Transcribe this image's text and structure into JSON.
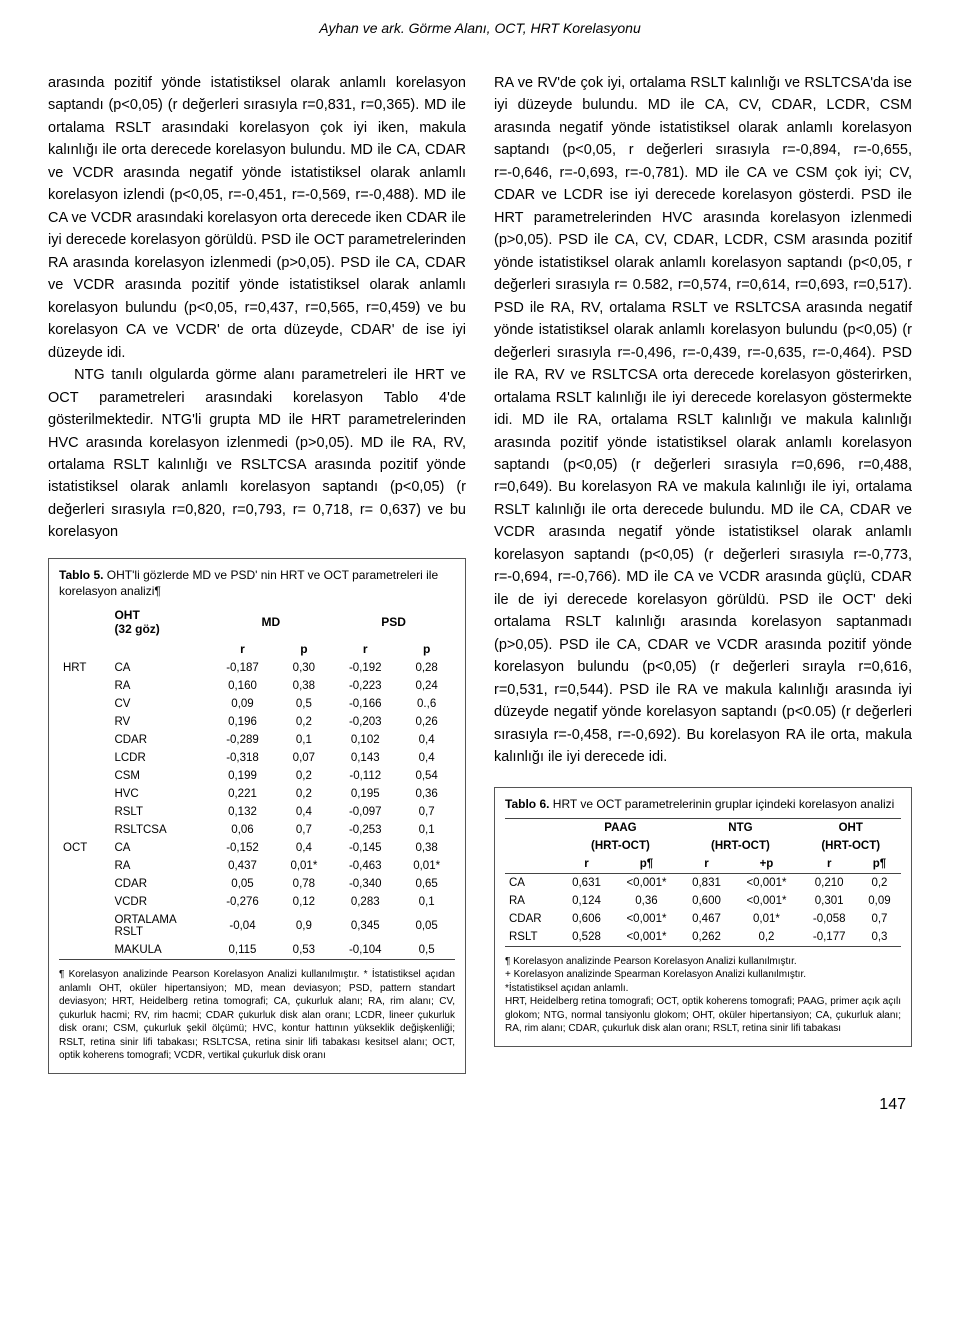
{
  "running_head": "Ayhan ve ark. Görme Alanı, OCT, HRT Korelasyonu",
  "left_col": {
    "p1": "arasında pozitif yönde istatistiksel olarak anlamlı korelasyon saptandı (p<0,05) (r değerleri sırasıyla r=0,831, r=0,365). MD ile ortalama RSLT arasındaki korelasyon çok iyi iken, makula kalınlığı ile orta derecede korelasyon bulundu. MD ile CA, CDAR ve VCDR arasında negatif yönde istatistiksel olarak anlamlı korelasyon izlendi (p<0,05, r=-0,451, r=-0,569, r=-0,488). MD ile CA ve VCDR arasındaki korelasyon orta derecede iken CDAR ile iyi derecede korelasyon görüldü. PSD ile OCT parametrelerinden RA arasında korelasyon izlenmedi (p>0,05). PSD ile CA, CDAR ve VCDR arasında pozitif yönde istatistiksel olarak anlamlı korelasyon bulundu (p<0,05, r=0,437, r=0,565, r=0,459) ve bu korelasyon CA ve VCDR' de orta düzeyde, CDAR' de ise iyi düzeyde idi.",
    "p2": "NTG tanılı olgularda görme alanı parametreleri ile HRT ve OCT parametreleri arasındaki korelasyon Tablo 4'de gösterilmektedir. NTG'li grupta MD ile HRT parametrelerinden HVC arasında korelasyon izlenmedi (p>0,05). MD ile RA, RV, ortalama RSLT kalınlığı ve RSLTCSA arasında pozitif yönde istatistiksel olarak anlamlı korelasyon saptandı (p<0,05) (r değerleri sırasıyla r=0,820, r=0,793, r= 0,718, r= 0,637) ve bu korelasyon"
  },
  "right_col": {
    "p1": "RA ve RV'de çok iyi, ortalama RSLT kalınlığı ve RSLTCSA'da ise iyi düzeyde bulundu. MD ile CA, CV, CDAR, LCDR, CSM arasında negatif yönde istatistiksel olarak anlamlı korelasyon saptandı (p<0,05, r değerleri sırasıyla r=-0,894, r=-0,655, r=-0,646, r=-0,693, r=-0,781). MD ile CA ve CSM çok iyi; CV, CDAR ve LCDR ise iyi derecede korelasyon gösterdi. PSD ile HRT parametrelerinden HVC arasında korelasyon izlenmedi (p>0,05). PSD ile CA, CV, CDAR, LCDR, CSM arasında pozitif yönde istatistiksel olarak anlamlı korelasyon saptandı (p<0,05, r değerleri sırasıyla r= 0.582, r=0,574, r=0,614, r=0,693, r=0,517). PSD ile RA, RV, ortalama RSLT ve RSLTCSA arasında negatif yönde istatistiksel olarak anlamlı korelasyon bulundu (p<0,05) (r değerleri sırasıyla r=-0,496, r=-0,439, r=-0,635, r=-0,464). PSD ile RA, RV ve RSLTCSA orta derecede korelasyon gösterirken, ortalama RSLT kalınlığı ile iyi derecede korelasyon göstermekte idi. MD ile RA, ortalama RSLT kalınlığı ve makula kalınlığı arasında pozitif yönde istatistiksel olarak anlamlı korelasyon saptandı (p<0,05) (r değerleri sırasıyla r=0,696, r=0,488, r=0,649). Bu korelasyon RA ve makula kalınlığı ile iyi, ortalama RSLT kalınlığı ile orta derecede bulundu. MD ile CA, CDAR ve VCDR arasında negatif yönde istatistiksel olarak anlamlı korelasyon saptandı (p<0,05) (r değerleri sırasıyla r=-0,773, r=-0,694, r=-0,766). MD ile CA ve VCDR arasında güçlü, CDAR ile de iyi derecede korelasyon görüldü. PSD ile OCT' deki ortalama RSLT kalınlığı arasında korelasyon saptanmadı (p>0,05). PSD ile CA, CDAR ve VCDR arasında pozitif yönde korelasyon bulundu (p<0,05) (r değerleri sırayla r=0,616, r=0,531, r=0,544). PSD ile RA ve makula kalınlığı arasında iyi düzeyde negatif yönde korelasyon saptandı (p<0.05) (r değerleri sırasıyla r=-0,458, r=-0,692). Bu korelasyon RA ile orta, makula kalınlığı ile iyi derecede idi."
  },
  "table5": {
    "caption_bold": "Tablo 5.",
    "caption_rest": " OHT'li gözlerde MD ve PSD' nin HRT ve OCT parametreleri ile korelasyon analizi¶",
    "head": {
      "oht": "OHT",
      "goz": "(32 göz)",
      "md": "MD",
      "psd": "PSD",
      "r": "r",
      "p": "p"
    },
    "groups": [
      {
        "name": "HRT",
        "rows": [
          {
            "param": "CA",
            "r1": "-0,187",
            "p1": "0,30",
            "r2": "-0,192",
            "p2": "0,28"
          },
          {
            "param": "RA",
            "r1": "0,160",
            "p1": "0,38",
            "r2": "-0,223",
            "p2": "0,24"
          },
          {
            "param": "CV",
            "r1": "0,09",
            "p1": "0,5",
            "r2": "-0,166",
            "p2": "0.,6"
          },
          {
            "param": "RV",
            "r1": "0,196",
            "p1": "0,2",
            "r2": "-0,203",
            "p2": "0,26"
          },
          {
            "param": "CDAR",
            "r1": "-0,289",
            "p1": "0,1",
            "r2": "0,102",
            "p2": "0,4"
          },
          {
            "param": "LCDR",
            "r1": "-0,318",
            "p1": "0,07",
            "r2": "0,143",
            "p2": "0,4"
          },
          {
            "param": "CSM",
            "r1": "0,199",
            "p1": "0,2",
            "r2": "-0,112",
            "p2": "0,54"
          },
          {
            "param": "HVC",
            "r1": "0,221",
            "p1": "0,2",
            "r2": "0,195",
            "p2": "0,36"
          },
          {
            "param": "RSLT",
            "r1": "0,132",
            "p1": "0,4",
            "r2": "-0,097",
            "p2": "0,7"
          },
          {
            "param": "RSLTCSA",
            "r1": "0,06",
            "p1": "0,7",
            "r2": "-0,253",
            "p2": "0,1"
          }
        ]
      },
      {
        "name": "OCT",
        "rows": [
          {
            "param": "CA",
            "r1": "-0,152",
            "p1": "0,4",
            "r2": "-0,145",
            "p2": "0,38"
          },
          {
            "param": "RA",
            "r1": "0,437",
            "p1": "0,01*",
            "r2": "-0,463",
            "p2": "0,01*"
          },
          {
            "param": "CDAR",
            "r1": "0,05",
            "p1": "0,78",
            "r2": "-0,340",
            "p2": "0,65"
          },
          {
            "param": "VCDR",
            "r1": "-0,276",
            "p1": "0,12",
            "r2": "0,283",
            "p2": "0,1"
          },
          {
            "param": "ORTALAMA RSLT",
            "r1": "-0,04",
            "p1": "0,9",
            "r2": "0,345",
            "p2": "0,05"
          },
          {
            "param": "MAKULA",
            "r1": "0,115",
            "p1": "0,53",
            "r2": "-0,104",
            "p2": "0,5"
          }
        ]
      }
    ],
    "footnotes": "¶ Korelasyon analizinde Pearson Korelasyon Analizi kullanılmıştır. * İstatistiksel açıdan anlamlı OHT, oküler hipertansiyon; MD, mean deviasyon; PSD, pattern standart deviasyon; HRT, Heidelberg retina tomografi; CA, çukurluk alanı; RA, rim alanı; CV, çukurluk hacmi; RV, rim hacmi; CDAR çukurluk disk alan oranı; LCDR, lineer çukurluk disk oranı; CSM, çukurluk şekil ölçümü; HVC, kontur hattının yükseklik değişkenliği; RSLT, retina sinir lifi tabakası; RSLTCSA, retina sinir lifi tabakası kesitsel alanı; OCT, optik koherens tomografi; VCDR, vertikal çukurluk disk oranı"
  },
  "table6": {
    "caption_bold": "Tablo 6.",
    "caption_rest": " HRT ve OCT parametrelerinin gruplar içindeki korelasyon analizi",
    "groups": {
      "paag": "PAAG",
      "ntg": "NTG",
      "oht": "OHT",
      "sub": "(HRT-OCT)"
    },
    "head": {
      "r": "r",
      "p1": "p¶",
      "p2": "+p",
      "p3": "p¶"
    },
    "rows": [
      {
        "label": "CA",
        "r1": "0,631",
        "p1": "<0,001*",
        "r2": "0,831",
        "p2": "<0,001*",
        "r3": "0,210",
        "p3": "0,2"
      },
      {
        "label": "RA",
        "r1": "0,124",
        "p1": "0,36",
        "r2": "0,600",
        "p2": "<0,001*",
        "r3": "0,301",
        "p3": "0,09"
      },
      {
        "label": "CDAR",
        "r1": "0,606",
        "p1": "<0,001*",
        "r2": "0,467",
        "p2": "0,01*",
        "r3": "-0,058",
        "p3": "0,7"
      },
      {
        "label": "RSLT",
        "r1": "0,528",
        "p1": "<0,001*",
        "r2": "0,262",
        "p2": "0,2",
        "r3": "-0,177",
        "p3": "0,3"
      }
    ],
    "footnotes": "¶ Korelasyon analizinde Pearson Korelasyon Analizi kullanılmıştır.\n+ Korelasyon analizinde Spearman Korelasyon Analizi kullanılmıştır.\n*İstatistiksel açıdan anlamlı.\nHRT, Heidelberg retina tomografi;  OCT, optik koherens tomografi; PAAG, primer açık açılı glokom; NTG, normal tansiyonlu glokom; OHT, oküler hipertansiyon;  CA, çukurluk alanı; RA, rim alanı; CDAR, çukurluk disk alan oranı; RSLT, retina sinir lifi tabakası"
  },
  "page_number": "147"
}
